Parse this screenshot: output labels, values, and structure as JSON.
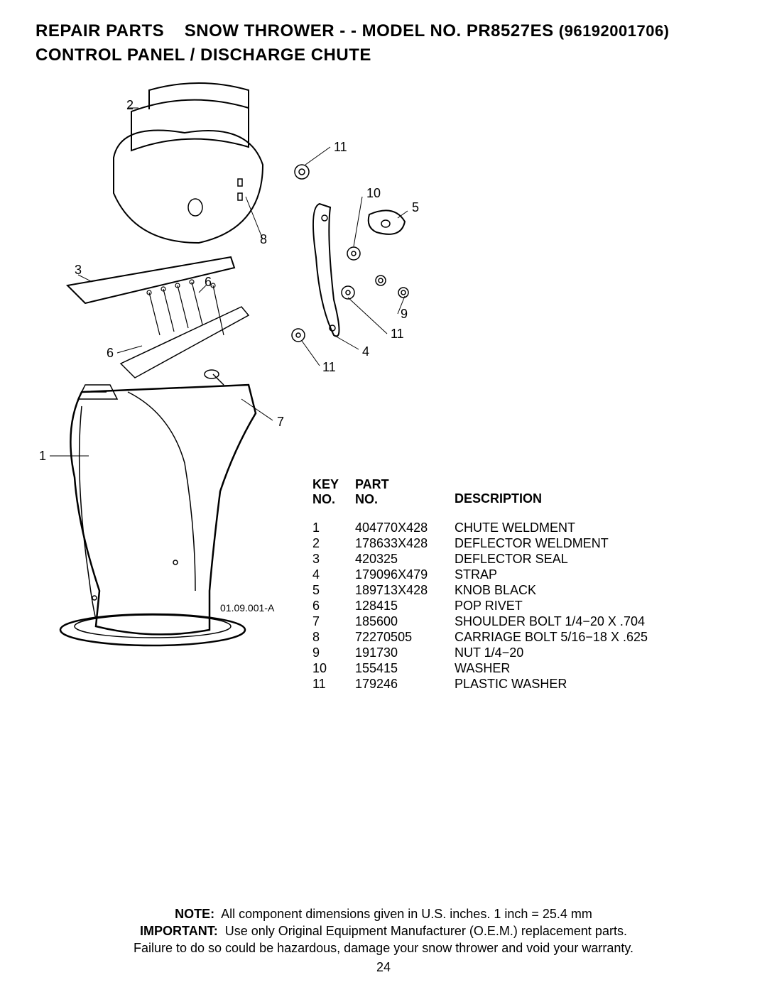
{
  "header": {
    "repair_parts": "REPAIR PARTS",
    "snow_thrower": "SNOW THROWER - - MODEL NO.",
    "model": "PR8527ES",
    "model_num": "(96192001706)",
    "subtitle": "CONTROL PANEL / DISCHARGE CHUTE"
  },
  "diagram": {
    "drawing_code": "01.09.001-A",
    "callouts": {
      "c1": "1",
      "c2": "2",
      "c3": "3",
      "c4": "4",
      "c5": "5",
      "c6a": "6",
      "c6b": "6",
      "c7": "7",
      "c8": "8",
      "c9": "9",
      "c10": "10",
      "c11a": "11",
      "c11b": "11",
      "c11c": "11"
    }
  },
  "parts_table": {
    "headers": {
      "key": "KEY\nNO.",
      "part": "PART\nNO.",
      "desc": "DESCRIPTION"
    },
    "rows": [
      {
        "key": "1",
        "part": "404770X428",
        "desc": "CHUTE WELDMENT"
      },
      {
        "key": "2",
        "part": "178633X428",
        "desc": "DEFLECTOR WELDMENT"
      },
      {
        "key": "3",
        "part": "420325",
        "desc": "DEFLECTOR SEAL"
      },
      {
        "key": "4",
        "part": "179096X479",
        "desc": "STRAP"
      },
      {
        "key": "5",
        "part": "189713X428",
        "desc": "KNOB BLACK"
      },
      {
        "key": "6",
        "part": "128415",
        "desc": "POP RIVET"
      },
      {
        "key": "7",
        "part": "185600",
        "desc": "SHOULDER BOLT 1/4−20 X .704"
      },
      {
        "key": "8",
        "part": "72270505",
        "desc": "CARRIAGE BOLT 5/16−18 X .625"
      },
      {
        "key": "9",
        "part": "191730",
        "desc": "NUT 1/4−20"
      },
      {
        "key": "10",
        "part": "155415",
        "desc": "WASHER"
      },
      {
        "key": "11",
        "part": "179246",
        "desc": "PLASTIC WASHER"
      }
    ]
  },
  "footer": {
    "note_label": "NOTE:",
    "note_text": "All component dimensions given in U.S. inches.    1 inch = 25.4 mm",
    "important_label": "IMPORTANT:",
    "important_text": "Use only Original Equipment Manufacturer (O.E.M.) replacement parts.",
    "warning": "Failure to do so could be hazardous, damage your snow thrower and void your warranty."
  },
  "page_number": "24",
  "style": {
    "font_family": "Arial",
    "header_fontsize": 24,
    "body_fontsize": 18,
    "small_fontsize": 14,
    "text_color": "#000000",
    "background_color": "#ffffff",
    "line_color": "#000000",
    "line_width": 1.5
  }
}
